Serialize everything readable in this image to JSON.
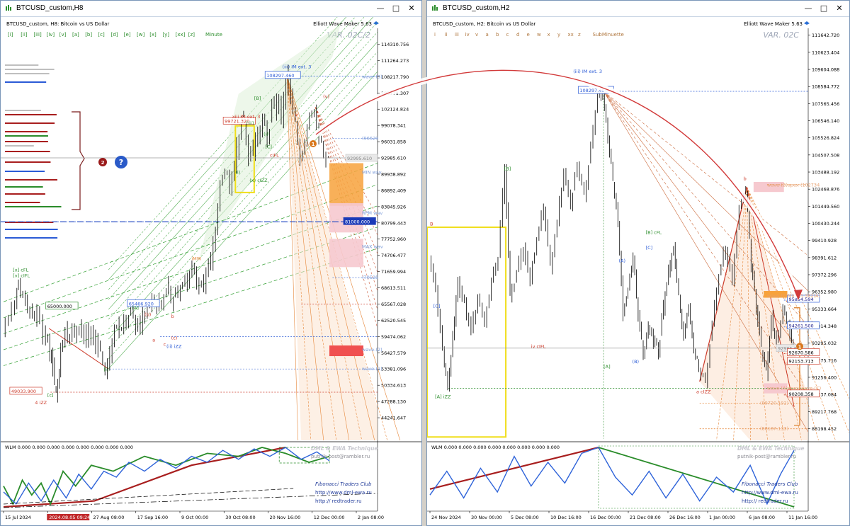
{
  "windows": [
    {
      "id": "left",
      "title": "BTCUSD_custom,H8",
      "header": "BTCUSD_custom, H8:  Bitcoin vs US Dollar",
      "indicator_name": "Elliott Wave Maker 5.63",
      "variant": "VAR. 02C/2",
      "wave_buttons": [
        "[i]",
        "[ii]",
        "[iii]",
        "[iv]",
        "[v]",
        "[a]",
        "[b]",
        "[c]",
        "[d]",
        "[e]",
        "[w]",
        "[x]",
        "[y]",
        "[xx]",
        "[z]"
      ],
      "degree_label": "Minute",
      "subwindow_label": "WLM 0.000 0.000 0.000 0.000 0.000 0.000 0.000 0.000",
      "credits": [
        "DML & EWA Technique",
        "putnik-post@rambler.ru",
        "Fibonacci   Traders   Club",
        "http://www.dml-ewa.ru",
        "http:// redtrader.ru"
      ],
      "current_price_label": "92995.610",
      "price_boxes": [
        "108297.460",
        "99721.320",
        "65000.000",
        "65466.920",
        "49033.900",
        "81000.000"
      ],
      "wave_labels": [
        "(iii) IM ext. 3",
        "xiii IM ext. 3",
        "(v)",
        "(ii) iZZ",
        "4 iZZ",
        "[v] cIFL",
        "iMW",
        "[iii]",
        "[B]",
        "(i)",
        "[C]",
        "(c)",
        "(b)",
        "[A]",
        "[c]",
        "a",
        "b",
        "c",
        "[x] cFL",
        "[i]",
        "v",
        "(x) cIZZ",
        "cIFL",
        "(i)"
      ],
      "right_labels": [
        "wave-(3)",
        "(96629",
        "MIN wav",
        "RPM wav",
        "MAX wav",
        "(70525",
        "wave-(2)",
        "wave-(1)"
      ],
      "chart_data": {
        "type": "line",
        "symbol": "BTCUSD_custom",
        "timeframe": "H8",
        "ylim": [
          40000,
          116500
        ],
        "y_ticks": [
          114310.756,
          111264.273,
          108217.79,
          105171.307,
          102124.824,
          99078.341,
          96031.858,
          92985.61,
          89938.892,
          86892.409,
          83845.926,
          80799.443,
          77752.96,
          74706.477,
          71659.994,
          68613.511,
          65567.028,
          62520.545,
          59474.062,
          56427.579,
          53381.096,
          50334.613,
          47288.13,
          44241.647
        ],
        "x_ticks": [
          "15 Jul 2024",
          "2024.08.05 09:24",
          "27 Aug 08:00",
          "17 Sep 16:00",
          "9 Oct 00:00",
          "30 Oct 08:00",
          "20 Nov 16:00",
          "12 Dec 00:00",
          "2 Jan 08:00"
        ],
        "path": [
          [
            0,
            61500
          ],
          [
            4,
            63000
          ],
          [
            8,
            66000
          ],
          [
            10,
            69000
          ],
          [
            13,
            67000
          ],
          [
            16,
            65500
          ],
          [
            19,
            62500
          ],
          [
            22,
            64000
          ],
          [
            26,
            60500
          ],
          [
            29,
            57500
          ],
          [
            31,
            55500
          ],
          [
            33,
            50800
          ],
          [
            35,
            49034
          ],
          [
            37,
            57000
          ],
          [
            40,
            60500
          ],
          [
            43,
            59000
          ],
          [
            46,
            61500
          ],
          [
            49,
            59500
          ],
          [
            52,
            61000
          ],
          [
            55,
            58500
          ],
          [
            58,
            60000
          ],
          [
            61,
            57000
          ],
          [
            64,
            54500
          ],
          [
            67,
            53400
          ],
          [
            70,
            58500
          ],
          [
            73,
            61500
          ],
          [
            76,
            60800
          ],
          [
            79,
            63000
          ],
          [
            82,
            63800
          ],
          [
            85,
            62200
          ],
          [
            88,
            61000
          ],
          [
            91,
            64000
          ],
          [
            94,
            65500
          ],
          [
            97,
            66500
          ],
          [
            100,
            64500
          ],
          [
            103,
            67200
          ],
          [
            106,
            68500
          ],
          [
            109,
            66800
          ],
          [
            112,
            67600
          ],
          [
            115,
            69000
          ],
          [
            118,
            70500
          ],
          [
            121,
            72500
          ],
          [
            124,
            69800
          ],
          [
            127,
            68000
          ],
          [
            130,
            71800
          ],
          [
            133,
            74000
          ],
          [
            136,
            79000
          ],
          [
            139,
            88000
          ],
          [
            142,
            90500
          ],
          [
            145,
            87500
          ],
          [
            148,
            91500
          ],
          [
            151,
            98000
          ],
          [
            154,
            99700
          ],
          [
            157,
            93000
          ],
          [
            160,
            94500
          ],
          [
            163,
            97000
          ],
          [
            166,
            99500
          ],
          [
            169,
            96800
          ],
          [
            172,
            101500
          ],
          [
            175,
            104000
          ],
          [
            178,
            100000
          ],
          [
            181,
            108300
          ],
          [
            184,
            104500
          ],
          [
            187,
            99000
          ],
          [
            190,
            93500
          ],
          [
            193,
            96000
          ],
          [
            196,
            101000
          ],
          [
            199,
            102500
          ],
          [
            202,
            97000
          ],
          [
            205,
            94000
          ],
          [
            208,
            92995
          ]
        ],
        "horizontal_levels": [
          108297.46,
          96629,
          81000,
          70525,
          65567,
          59474,
          53381,
          49033.9
        ],
        "wlm": {
          "red": [
            [
              0,
              -1.0
            ],
            [
              58,
              -0.8
            ],
            [
              120,
              0.4
            ],
            [
              180,
              1.0
            ]
          ],
          "green": [
            [
              0,
              -0.3
            ],
            [
              6,
              -0.9
            ],
            [
              12,
              -0.1
            ],
            [
              18,
              -0.6
            ],
            [
              24,
              -0.2
            ],
            [
              30,
              -0.9
            ],
            [
              38,
              0.2
            ],
            [
              46,
              -0.3
            ],
            [
              56,
              0.4
            ],
            [
              70,
              0.2
            ],
            [
              90,
              0.7
            ],
            [
              110,
              0.4
            ],
            [
              130,
              0.8
            ],
            [
              150,
              0.7
            ],
            [
              165,
              1.0
            ],
            [
              180,
              0.8
            ],
            [
              195,
              0.5
            ],
            [
              208,
              0.7
            ]
          ],
          "blue": [
            [
              0,
              -0.5
            ],
            [
              8,
              -0.9
            ],
            [
              16,
              -0.2
            ],
            [
              24,
              -0.8
            ],
            [
              32,
              -0.1
            ],
            [
              40,
              -0.7
            ],
            [
              48,
              0.1
            ],
            [
              56,
              -0.4
            ],
            [
              64,
              0.2
            ],
            [
              72,
              0.0
            ],
            [
              80,
              0.5
            ],
            [
              90,
              0.2
            ],
            [
              100,
              0.6
            ],
            [
              110,
              0.3
            ],
            [
              120,
              0.7
            ],
            [
              130,
              0.5
            ],
            [
              140,
              0.9
            ],
            [
              150,
              0.6
            ],
            [
              160,
              0.95
            ],
            [
              170,
              0.7
            ],
            [
              180,
              1.0
            ],
            [
              190,
              0.6
            ],
            [
              200,
              0.85
            ],
            [
              208,
              0.55
            ]
          ]
        }
      }
    },
    {
      "id": "right",
      "title": "BTCUSD_custom,H2",
      "header": "BTCUSD_custom, H2:  Bitcoin vs US Dollar",
      "indicator_name": "Elliott Wave Maker 5.63",
      "variant": "VAR. 02C",
      "wave_buttons": [
        "i",
        "ii",
        "iii",
        "iv",
        "v",
        "a",
        "b",
        "c",
        "d",
        "e",
        "w",
        "x",
        "y",
        "xx",
        "z"
      ],
      "degree_label": "SubMinuette",
      "subwindow_label": "WLM 0.000 0.000 0.000 0.000 0.000 0.000 0.000 0.000",
      "credits": [
        "DML & EWA Technique",
        "putnik-post@rambler.ru",
        "Fibonacci   Traders   Club",
        "http://www.dml-ewa.ru",
        "http:// redtrader.ru"
      ],
      "current_price_label": "92995.610",
      "price_boxes": [
        "108297.460",
        "95854.594",
        "94261.500",
        "92670.586",
        "92153.713",
        "90208.358"
      ],
      "wave_labels": [
        "(iii) IM ext. 3",
        "[B]",
        "[B] cFL",
        "iv cIFL",
        "[A] iZZ",
        "[C]",
        "[A]",
        "(B)",
        "b",
        "a cIZZ",
        "[C]",
        "(A)"
      ],
      "right_labels": [
        "wave-(B)apex (102734",
        "wave-(C)MIN=0.382(A)",
        "wave-(A)apex-wave-(C)",
        "(89720.192)",
        "(88187.133)"
      ],
      "chart_data": {
        "type": "line",
        "symbol": "BTCUSD_custom",
        "timeframe": "H2",
        "ylim": [
          87500,
          111800
        ],
        "y_ticks": [
          111642.72,
          110623.404,
          109604.088,
          108584.772,
          107565.456,
          106546.14,
          105526.824,
          104507.508,
          103488.192,
          102468.876,
          101449.56,
          100430.244,
          99410.928,
          98391.612,
          97372.296,
          96352.98,
          95333.664,
          94314.348,
          93295.032,
          92275.716,
          91256.4,
          90237.084,
          89217.768,
          88198.452
        ],
        "x_ticks": [
          "24 Nov 2024",
          "30 Nov 00:00",
          "5 Dec 08:00",
          "10 Dec 16:00",
          "16 Dec 00:00",
          "21 Dec 08:00",
          "26 Dec 16:00",
          "1 Jan 00:00",
          "6 Jan 08:00",
          "11 Jan 16:00"
        ],
        "path": [
          [
            0,
            98500
          ],
          [
            4,
            96500
          ],
          [
            8,
            92800
          ],
          [
            11,
            90700
          ],
          [
            14,
            93500
          ],
          [
            17,
            97000
          ],
          [
            21,
            95500
          ],
          [
            25,
            94000
          ],
          [
            29,
            96000
          ],
          [
            33,
            94500
          ],
          [
            37,
            97000
          ],
          [
            41,
            98500
          ],
          [
            45,
            103800
          ],
          [
            48,
            96000
          ],
          [
            52,
            97500
          ],
          [
            56,
            99000
          ],
          [
            60,
            97000
          ],
          [
            64,
            99500
          ],
          [
            68,
            101500
          ],
          [
            72,
            97800
          ],
          [
            76,
            100500
          ],
          [
            80,
            103500
          ],
          [
            84,
            101500
          ],
          [
            88,
            104000
          ],
          [
            92,
            102000
          ],
          [
            96,
            105000
          ],
          [
            100,
            108000
          ],
          [
            103,
            108297
          ],
          [
            106,
            105500
          ],
          [
            109,
            103000
          ],
          [
            112,
            100500
          ],
          [
            115,
            95000
          ],
          [
            118,
            96500
          ],
          [
            121,
            98500
          ],
          [
            124,
            95000
          ],
          [
            127,
            92500
          ],
          [
            130,
            94200
          ],
          [
            133,
            93500
          ],
          [
            136,
            92700
          ],
          [
            139,
            95500
          ],
          [
            142,
            97500
          ],
          [
            145,
            99000
          ],
          [
            148,
            96000
          ],
          [
            151,
            93800
          ],
          [
            154,
            95500
          ],
          [
            157,
            93000
          ],
          [
            160,
            91800
          ],
          [
            164,
            91000
          ],
          [
            168,
            94500
          ],
          [
            172,
            97500
          ],
          [
            176,
            99000
          ],
          [
            180,
            97000
          ],
          [
            184,
            101500
          ],
          [
            188,
            102500
          ],
          [
            191,
            98000
          ],
          [
            194,
            95500
          ],
          [
            197,
            93000
          ],
          [
            200,
            91500
          ],
          [
            203,
            94800
          ],
          [
            206,
            93200
          ],
          [
            210,
            95400
          ],
          [
            213,
            94300
          ],
          [
            216,
            92995
          ]
        ],
        "horizontal_levels": [
          108297.46,
          102734,
          95854.594,
          94261.5,
          92670.586,
          92153.713,
          90208.358,
          89720.192,
          88187.133
        ],
        "wlm": {
          "red": [
            [
              0,
              -0.4
            ],
            [
              100,
              1.0
            ]
          ],
          "green": [
            [
              100,
              1.0
            ],
            [
              216,
              -1.0
            ]
          ],
          "blue": [
            [
              0,
              -0.6
            ],
            [
              10,
              0.2
            ],
            [
              20,
              -0.7
            ],
            [
              30,
              0.3
            ],
            [
              40,
              -0.5
            ],
            [
              50,
              0.7
            ],
            [
              60,
              -0.3
            ],
            [
              70,
              0.5
            ],
            [
              80,
              -0.2
            ],
            [
              90,
              0.8
            ],
            [
              100,
              1.0
            ],
            [
              110,
              0.0
            ],
            [
              120,
              -0.6
            ],
            [
              130,
              0.2
            ],
            [
              140,
              -0.7
            ],
            [
              150,
              0.1
            ],
            [
              160,
              -0.8
            ],
            [
              170,
              0.0
            ],
            [
              180,
              -0.5
            ],
            [
              190,
              0.4
            ],
            [
              200,
              -0.9
            ],
            [
              208,
              0.1
            ],
            [
              216,
              0.9
            ]
          ]
        }
      }
    }
  ],
  "colors": {
    "bull": "#2f9e2f",
    "bear": "#cc3b2b",
    "fan_orange": "#e6873a",
    "blue": "#2b5bd6",
    "wlm_red": "#a81e1e",
    "wlm_green": "#2a8c2a",
    "wlm_blue": "#2e63d9",
    "yellow": "#f0de1a"
  },
  "icons": [
    "chart-window-icon",
    "minimize-icon",
    "maximize-icon",
    "close-icon",
    "help-icon",
    "hat-icon",
    "marker-1",
    "marker-2"
  ]
}
